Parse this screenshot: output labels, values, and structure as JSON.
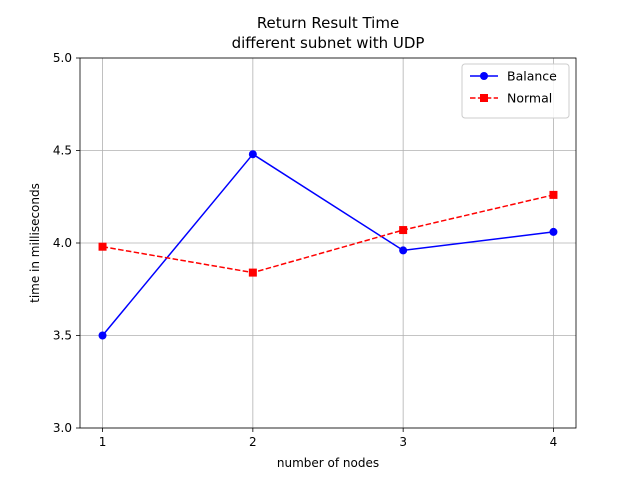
{
  "chart_data": {
    "type": "line",
    "title": "Return Result Time",
    "subtitle": "different subnet with UDP",
    "xlabel": "number of nodes",
    "ylabel": "time in milliseconds",
    "x": [
      1,
      2,
      3,
      4
    ],
    "xticks": [
      "1",
      "2",
      "3",
      "4"
    ],
    "xlim": [
      0.85,
      4.15
    ],
    "ylim": [
      3.0,
      5.0
    ],
    "yticks": [
      "3.0",
      "3.5",
      "4.0",
      "4.5",
      "5.0"
    ],
    "grid": true,
    "legend_position": "top-right",
    "series": [
      {
        "name": "Balance",
        "values": [
          3.5,
          4.48,
          3.96,
          4.06
        ],
        "color": "#0000ff",
        "line_style": "solid",
        "marker": "circle"
      },
      {
        "name": "Normal",
        "values": [
          3.98,
          3.84,
          4.07,
          4.26
        ],
        "color": "#ff0000",
        "line_style": "dashed",
        "marker": "square"
      }
    ]
  }
}
